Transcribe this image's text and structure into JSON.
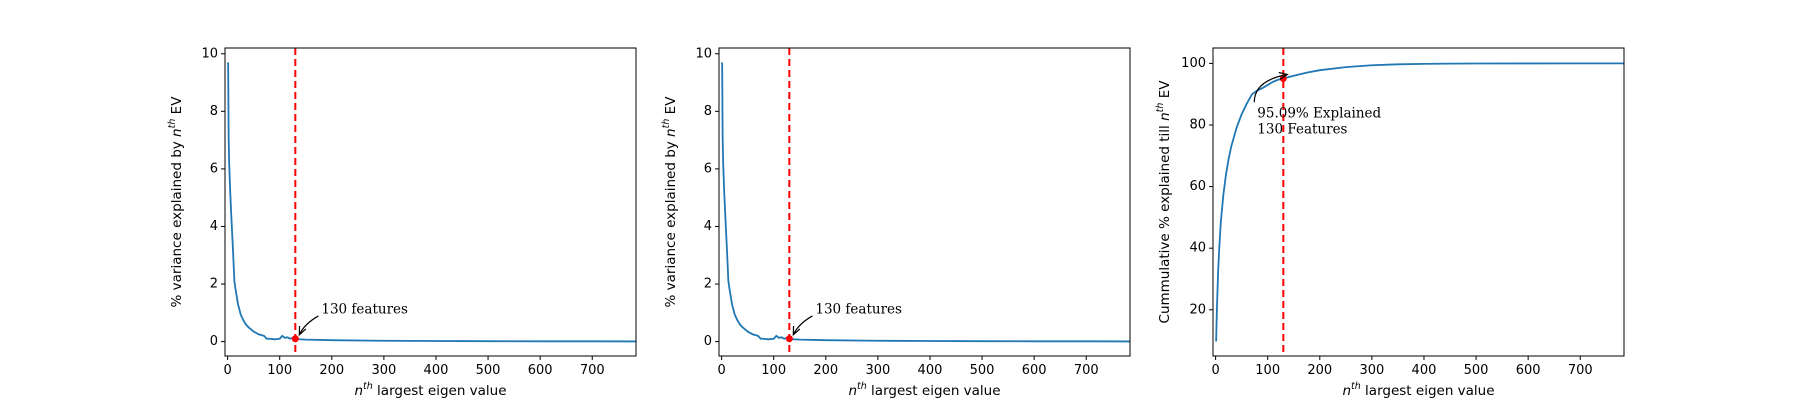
{
  "chart_data": [
    {
      "type": "line",
      "xlabel": {
        "base": "n",
        "sup": "th",
        "rest": " largest eigen value"
      },
      "ylabel": {
        "pre": "% variance explained by ",
        "base": "n",
        "sup": "th",
        "post": " EV"
      },
      "xlim": [
        -5,
        784
      ],
      "ylim": [
        -0.5,
        10.2
      ],
      "xticks": [
        0,
        100,
        200,
        300,
        400,
        500,
        600,
        700
      ],
      "yticks": [
        0,
        2,
        4,
        6,
        8,
        10
      ],
      "series_color": "#1f77b4",
      "x": [
        1,
        2,
        3,
        5,
        7,
        10,
        13,
        15,
        20,
        25,
        30,
        35,
        40,
        50,
        60,
        70,
        75,
        80,
        90,
        100,
        105,
        110,
        115,
        120,
        125,
        130,
        150,
        200,
        300,
        400,
        500,
        600,
        700,
        784
      ],
      "y": [
        9.7,
        7.1,
        6.2,
        5.2,
        4.4,
        3.3,
        2.1,
        1.85,
        1.3,
        0.95,
        0.75,
        0.6,
        0.5,
        0.35,
        0.25,
        0.2,
        0.1,
        0.1,
        0.08,
        0.1,
        0.2,
        0.13,
        0.15,
        0.1,
        0.13,
        0.09,
        0.07,
        0.05,
        0.03,
        0.02,
        0.015,
        0.01,
        0.01,
        0.005
      ],
      "threshold_x": 130,
      "threshold_color": "#ff0000",
      "marker": {
        "x": 130,
        "y": 0.1
      },
      "annotation": {
        "lines": [
          "130 features"
        ],
        "x": 180,
        "y": 1.1
      }
    },
    {
      "type": "line",
      "xlabel": {
        "base": "n",
        "sup": "th",
        "rest": " largest eigen value"
      },
      "ylabel": {
        "pre": "% variance explained by ",
        "base": "n",
        "sup": "th",
        "post": " EV"
      },
      "xlim": [
        -5,
        784
      ],
      "ylim": [
        -0.5,
        10.2
      ],
      "xticks": [
        0,
        100,
        200,
        300,
        400,
        500,
        600,
        700
      ],
      "yticks": [
        0,
        2,
        4,
        6,
        8,
        10
      ],
      "series_color": "#1f77b4",
      "x": [
        1,
        2,
        3,
        5,
        7,
        10,
        13,
        15,
        20,
        25,
        30,
        35,
        40,
        50,
        60,
        70,
        75,
        80,
        90,
        100,
        105,
        110,
        115,
        120,
        125,
        130,
        150,
        200,
        300,
        400,
        500,
        600,
        700,
        784
      ],
      "y": [
        9.7,
        7.1,
        6.2,
        5.2,
        4.4,
        3.3,
        2.1,
        1.85,
        1.3,
        0.95,
        0.75,
        0.6,
        0.5,
        0.35,
        0.25,
        0.2,
        0.1,
        0.1,
        0.08,
        0.1,
        0.2,
        0.13,
        0.15,
        0.1,
        0.13,
        0.09,
        0.07,
        0.05,
        0.03,
        0.02,
        0.015,
        0.01,
        0.01,
        0.005
      ],
      "threshold_x": 130,
      "threshold_color": "#ff0000",
      "marker": {
        "x": 130,
        "y": 0.1
      },
      "annotation": {
        "lines": [
          "130 features"
        ],
        "x": 180,
        "y": 1.1
      }
    },
    {
      "type": "line",
      "xlabel": {
        "base": "n",
        "sup": "th",
        "rest": " largest eigen value"
      },
      "ylabel": {
        "pre": "Cummulative % explained till ",
        "base": "n",
        "sup": "th",
        "post": " EV"
      },
      "xlim": [
        -5,
        784
      ],
      "ylim": [
        5,
        105
      ],
      "xticks": [
        0,
        100,
        200,
        300,
        400,
        500,
        600,
        700
      ],
      "yticks": [
        20,
        40,
        60,
        80,
        100
      ],
      "series_color": "#1f77b4",
      "x": [
        1,
        2,
        3,
        5,
        7,
        10,
        15,
        20,
        25,
        30,
        40,
        50,
        60,
        70,
        80,
        90,
        100,
        110,
        120,
        130,
        150,
        175,
        200,
        250,
        300,
        350,
        400,
        450,
        500,
        600,
        700,
        784
      ],
      "y": [
        9.7,
        16.8,
        23.0,
        33.0,
        40.0,
        48.5,
        57.5,
        64.0,
        69.0,
        73.0,
        79.0,
        83.5,
        87.0,
        90.0,
        91.2,
        92.0,
        93.0,
        94.0,
        94.7,
        95.09,
        96.0,
        97.0,
        97.8,
        98.8,
        99.4,
        99.7,
        99.85,
        99.93,
        99.97,
        99.99,
        100.0,
        100.0
      ],
      "threshold_x": 130,
      "threshold_color": "#ff0000",
      "marker": {
        "x": 130,
        "y": 95.09
      },
      "annotation": {
        "lines": [
          "95.09% Explained",
          "130 Features"
        ],
        "x": 80,
        "y": 83.5
      }
    }
  ]
}
